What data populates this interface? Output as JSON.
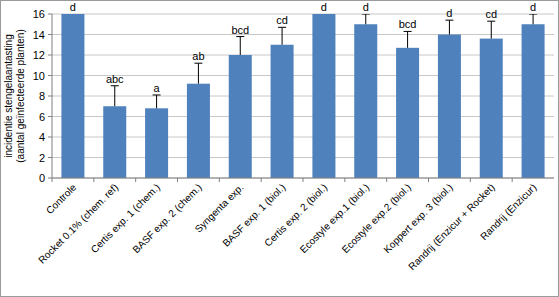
{
  "chart_data": {
    "type": "bar",
    "y_label": [
      "incidentie stengelaantasting",
      "(aantal geïnfecteerde planten)"
    ],
    "categories": [
      "Controle",
      "Rocket 0.1% (chem. ref)",
      "Certis exp. 1 (chem.)",
      "BASF exp. 2 (chem.)",
      "Syngenta exp.",
      "BASF exp. 1 (biol.)",
      "Certis exp. 2 (biol.)",
      "Ecostyle exp.1 (biol.)",
      "Ecostyle exp.2 (biol.)",
      "Koppert exp. 3 (biol.)",
      "Randrij (Enzicur + Rocket)",
      "Randrij (Enzicur)"
    ],
    "values": [
      16,
      7,
      6.8,
      9.2,
      12,
      13,
      16,
      15,
      12.7,
      14,
      13.6,
      15
    ],
    "errors": [
      0,
      2,
      1.3,
      2,
      1.8,
      1.7,
      0,
      1,
      1.6,
      1.4,
      1.7,
      1
    ],
    "annotations": [
      "d",
      "abc",
      "a",
      "ab",
      "bcd",
      "cd",
      "d",
      "d",
      "bcd",
      "d",
      "cd",
      "d"
    ],
    "color": "#4f81bd",
    "ylim": [
      0,
      16
    ],
    "yticks": [
      0,
      2,
      4,
      6,
      8,
      10,
      12,
      14,
      16
    ],
    "grid": true
  }
}
